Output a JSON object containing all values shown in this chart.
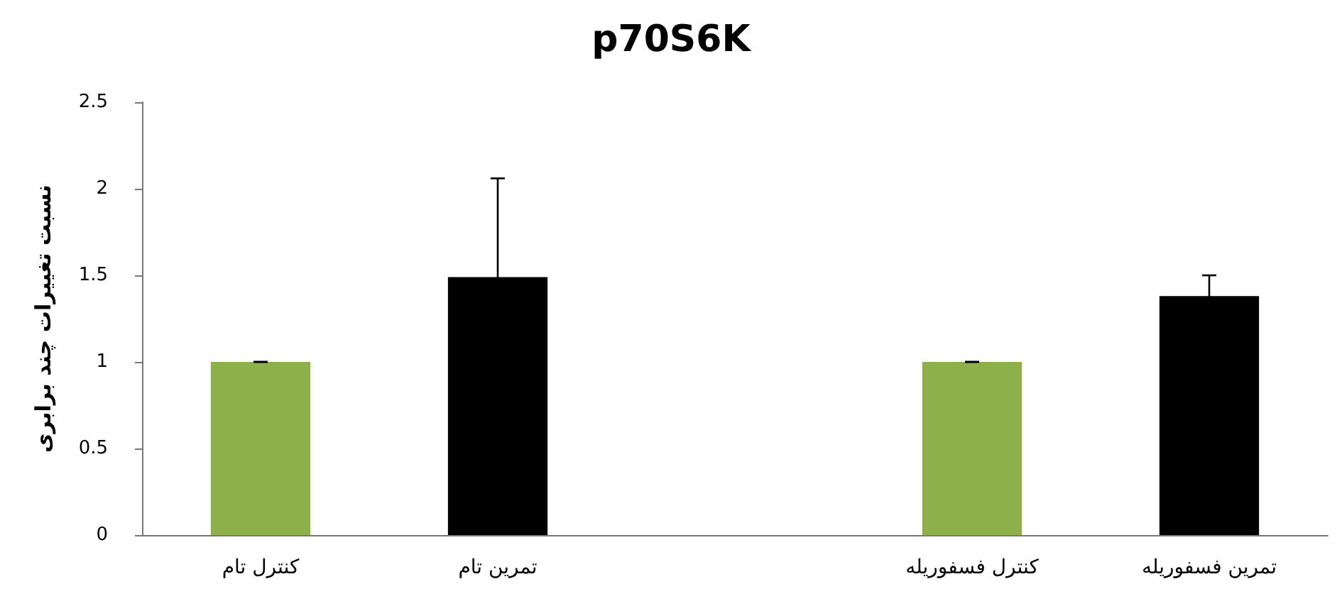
{
  "chart_data": {
    "type": "bar",
    "title": "p70S6K",
    "ylabel": "نسبت تغییرات چند برابری",
    "categories": [
      "کنترل تام",
      "تمرین تام",
      null,
      "کنترل فسفوریله",
      "تمرین فسفوریله"
    ],
    "values": [
      1,
      1.49,
      null,
      1,
      1.38
    ],
    "colors": [
      "#8db04a",
      "#000000",
      "#000000",
      "#8db04a",
      "#000000"
    ],
    "errors": [
      0,
      0.57,
      null,
      0,
      0.12
    ],
    "ylim": [
      0,
      2.5
    ],
    "yticks": [
      0,
      0.5,
      1,
      1.5,
      2,
      2.5
    ],
    "grid": false
  }
}
